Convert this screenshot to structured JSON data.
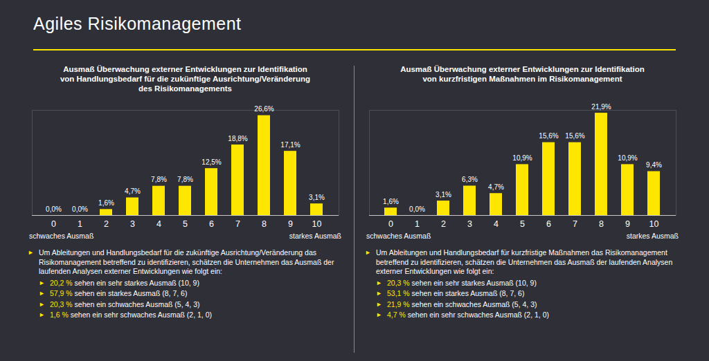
{
  "title": "Agiles Risikomanagement",
  "chart_data": [
    {
      "type": "bar",
      "title": "Ausmaß Überwachung externer Entwicklungen zur Identifikation\nvon Handlungsbedarf für die zukünftige Ausrichtung/Veränderung\ndes Risikomanagements",
      "categories": [
        "0",
        "1",
        "2",
        "3",
        "4",
        "5",
        "6",
        "7",
        "8",
        "9",
        "10"
      ],
      "values": [
        0.0,
        0.0,
        1.6,
        4.7,
        7.8,
        7.8,
        12.5,
        18.8,
        26.6,
        17.1,
        3.1
      ],
      "value_labels": [
        "0,0%",
        "0,0%",
        "1,6%",
        "4,7%",
        "7,8%",
        "7,8%",
        "12,5%",
        "18,8%",
        "26,6%",
        "17,1%",
        "3,1%"
      ],
      "color": "#ffe600",
      "data_labels": true,
      "tick_labels": "x",
      "ylim": [
        0,
        28
      ],
      "axis_notes": [
        "schwaches Ausmaß",
        "starkes Ausmaß"
      ],
      "caption": "Um Ableitungen und Handlungsbedarf für die zukünftige Ausrichtung/Veränderung das Risikomanagement betreffend zu identifizieren, schätzen die Unternehmen das Ausmaß der laufenden Analysen externer Entwicklungen wie folgt ein:",
      "summary": [
        {
          "value": 20.2,
          "label": "20,2 %",
          "text": "sehen ein sehr starkes Ausmaß (10, 9)"
        },
        {
          "value": 57.9,
          "label": "57,9 %",
          "text": "sehen ein starkes Ausmaß (8, 7, 6)"
        },
        {
          "value": 20.3,
          "label": "20,3 %",
          "text": "sehen ein schwaches Ausmaß (5, 4, 3)"
        },
        {
          "value": 1.6,
          "label": "1,6 %",
          "text": "sehen ein sehr schwaches Ausmaß (2, 1, 0)"
        }
      ]
    },
    {
      "type": "bar",
      "title": "Ausmaß Überwachung externer Entwicklungen zur Identifikation\nvon kurzfristigen Maßnahmen im Risikomanagement",
      "categories": [
        "0",
        "1",
        "2",
        "3",
        "4",
        "5",
        "6",
        "7",
        "8",
        "9",
        "10"
      ],
      "values": [
        1.6,
        0.0,
        3.1,
        6.3,
        4.7,
        10.9,
        15.6,
        15.6,
        21.9,
        10.9,
        9.4
      ],
      "value_labels": [
        "1,6%",
        "0,0%",
        "3,1%",
        "6,3%",
        "4,7%",
        "10,9%",
        "15,6%",
        "15,6%",
        "21,9%",
        "10,9%",
        "9,4%"
      ],
      "color": "#ffe600",
      "data_labels": true,
      "tick_labels": "x",
      "ylim": [
        0,
        22.5
      ],
      "axis_notes": [
        "schwaches Ausmaß",
        "starkes Ausmaß"
      ],
      "caption": "Um Ableitungen und Handlungsbedarf für kurzfristige Maßnahmen das Risikomanagement betreffend zu identifizieren, schätzen die Unternehmen das Ausmaß der laufenden Analysen externer Entwicklungen wie folgt ein:",
      "summary": [
        {
          "value": 20.3,
          "label": "20,3 %",
          "text": "sehen ein sehr starkes Ausmaß (10, 9)"
        },
        {
          "value": 53.1,
          "label": "53,1 %",
          "text": "sehen ein starkes Ausmaß (8, 7, 6)"
        },
        {
          "value": 21.9,
          "label": "21,9 %",
          "text": "sehen ein schwaches Ausmaß (5, 4, 3)"
        },
        {
          "value": 4.7,
          "label": "4,7 %",
          "text": "sehen ein sehr schwaches Ausmaß (2, 1, 0)"
        }
      ]
    }
  ]
}
